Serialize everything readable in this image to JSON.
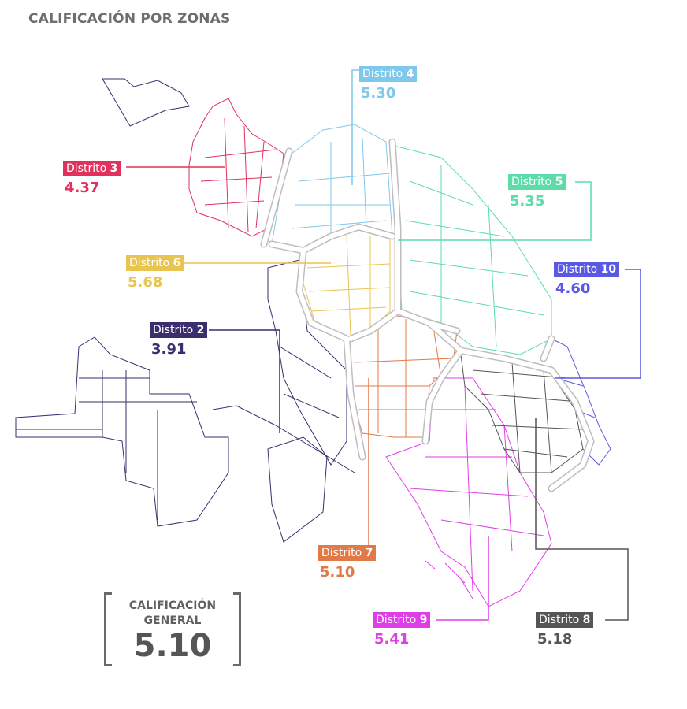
{
  "title": "CALIFICACIÓN POR ZONAS",
  "districts": [
    {
      "id": "3",
      "prefix": "Distrito",
      "number": "3",
      "score": "4.37",
      "color": "#e0325c"
    },
    {
      "id": "4",
      "prefix": "Distrito",
      "number": "4",
      "score": "5.30",
      "color": "#7ec8ec"
    },
    {
      "id": "5",
      "prefix": "Distrito",
      "number": "5",
      "score": "5.35",
      "color": "#5cdca8"
    },
    {
      "id": "6",
      "prefix": "Distrito",
      "number": "6",
      "score": "5.68",
      "color": "#e8c450"
    },
    {
      "id": "10",
      "prefix": "Distrito",
      "number": "10",
      "score": "4.60",
      "color": "#5a58e6"
    },
    {
      "id": "2",
      "prefix": "Distrito",
      "number": "2",
      "score": "3.91",
      "color": "#3a2e6e"
    },
    {
      "id": "7",
      "prefix": "Distrito",
      "number": "7",
      "score": "5.10",
      "color": "#e07a48"
    },
    {
      "id": "9",
      "prefix": "Distrito",
      "number": "9",
      "score": "5.41",
      "color": "#df3ee6"
    },
    {
      "id": "8",
      "prefix": "Distrito",
      "number": "8",
      "score": "5.18",
      "color": "#555555"
    }
  ],
  "general": {
    "label_line1": "CALIFICACIÓN",
    "label_line2": "GENERAL",
    "score": "5.10"
  }
}
